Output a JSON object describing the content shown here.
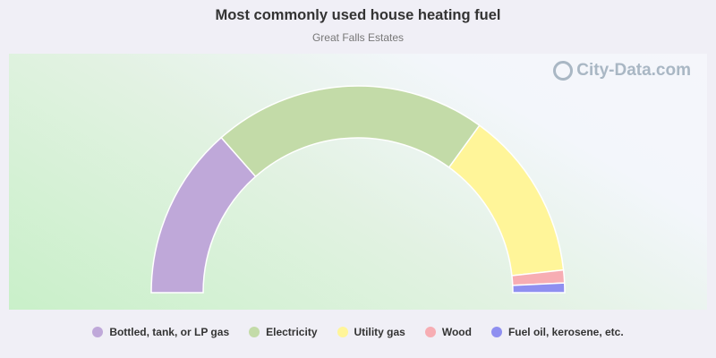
{
  "chart_data": {
    "type": "pie",
    "variant": "half-donut",
    "title": "Most commonly used house heating fuel",
    "subtitle": "Great Falls Estates",
    "legend_position": "bottom",
    "series": [
      {
        "name": "Bottled, tank, or LP gas",
        "value": 27.0,
        "color": "#bfa8d9"
      },
      {
        "name": "Electricity",
        "value": 43.0,
        "color": "#c3dba8"
      },
      {
        "name": "Utility gas",
        "value": 26.5,
        "color": "#fff599"
      },
      {
        "name": "Wood",
        "value": 2.0,
        "color": "#f7adb3"
      },
      {
        "name": "Fuel oil, kerosene, etc.",
        "value": 1.5,
        "color": "#8f8ff0"
      }
    ]
  },
  "watermark": {
    "text": "City-Data.com",
    "icon": "magnifier-icon"
  }
}
